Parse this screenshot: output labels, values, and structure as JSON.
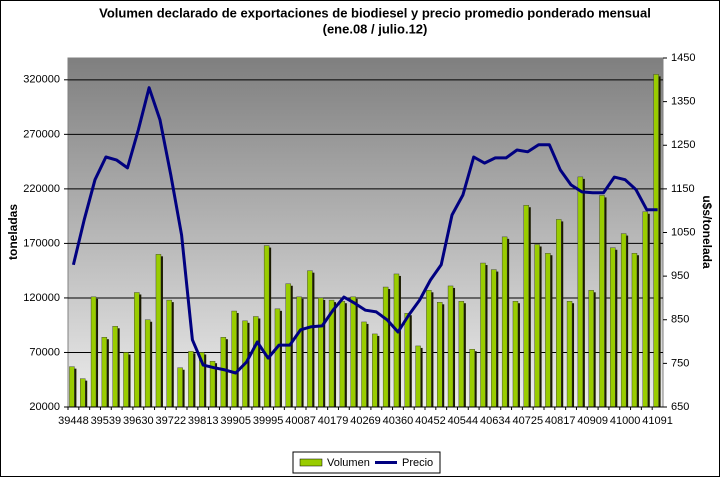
{
  "chart_data": {
    "type": "bar_line",
    "title": "Volumen declarado de exportaciones de biodiesel y precio promedio ponderado mensual",
    "subtitle": "(ene.08 / julio.12)",
    "y_label": "toneladas",
    "y2_label": "u$s/tonelada",
    "categories": [
      39448,
      null,
      null,
      39539,
      null,
      null,
      39630,
      null,
      null,
      39722,
      null,
      null,
      39813,
      null,
      null,
      39905,
      null,
      null,
      39995,
      null,
      null,
      40087,
      null,
      null,
      40179,
      null,
      null,
      40269,
      null,
      null,
      40360,
      null,
      null,
      40452,
      null,
      null,
      40544,
      null,
      null,
      40634,
      null,
      null,
      40725,
      null,
      null,
      40817,
      null,
      null,
      40909,
      null,
      null,
      41000,
      null,
      null,
      41091
    ],
    "series": [
      {
        "name": "Volumen",
        "type": "bar",
        "color": "#99cc00",
        "values": [
          57000,
          46000,
          121000,
          84000,
          94000,
          70000,
          125000,
          100000,
          160000,
          118000,
          56000,
          71000,
          70000,
          62000,
          84000,
          108000,
          99000,
          103000,
          168000,
          110000,
          133000,
          121000,
          145000,
          120000,
          118000,
          117000,
          121000,
          98000,
          87000,
          130000,
          142000,
          106000,
          76000,
          127000,
          116000,
          131000,
          117000,
          73000,
          152000,
          146000,
          176000,
          117000,
          205000,
          169000,
          161000,
          192000,
          117000,
          231000,
          127000,
          214000,
          166000,
          179000,
          161000,
          199000,
          325000
        ]
      },
      {
        "name": "Precio",
        "type": "line",
        "axis": "y2",
        "color": "#000080",
        "values": [
          976,
          1079,
          1171,
          1223,
          1216,
          1198,
          1285,
          1382,
          1308,
          1182,
          1044,
          804,
          746,
          740,
          735,
          728,
          753,
          799,
          762,
          792,
          792,
          827,
          834,
          836,
          872,
          902,
          888,
          872,
          868,
          850,
          822,
          861,
          895,
          941,
          976,
          1090,
          1136,
          1223,
          1209,
          1221,
          1221,
          1239,
          1235,
          1251,
          1251,
          1194,
          1159,
          1143,
          1141,
          1141,
          1177,
          1171,
          1148,
          1102,
          1102
        ]
      }
    ],
    "ylim": [
      20000,
      340000
    ],
    "yticks": [
      20000,
      70000,
      120000,
      170000,
      220000,
      270000,
      320000
    ],
    "y2lim": [
      650,
      1450
    ],
    "y2ticks": [
      650,
      750,
      850,
      950,
      1050,
      1150,
      1250,
      1350,
      1450
    ],
    "grid": true,
    "legend": "bottom"
  }
}
